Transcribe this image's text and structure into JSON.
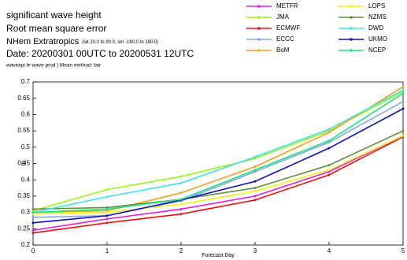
{
  "chart_data": {
    "type": "line",
    "title": "significant wave height",
    "subtitle": "Root mean square error",
    "region": "NHem Extratropics",
    "region_detail": "(lat  20.0 to 90.0, lon -180.0 to  180.0)",
    "date": "Date: 20200301 00UTC to 20200531 12UTC",
    "note": "waveapi le wave prod | Mean method: fair",
    "x_label": "Forecast Day",
    "y_label": "m",
    "x": [
      0,
      1,
      2,
      3,
      4,
      5
    ],
    "xlim": [
      0,
      5
    ],
    "xticks": [
      0,
      1,
      2,
      3,
      4,
      5
    ],
    "ylim": [
      0.2,
      0.7
    ],
    "yticks": [
      0.2,
      0.25,
      0.3,
      0.35,
      0.4,
      0.45,
      0.5,
      0.55,
      0.6,
      0.65,
      0.7
    ],
    "grid": false,
    "series": [
      {
        "name": "METFR",
        "color": "#e020e0",
        "values": [
          0.245,
          0.28,
          0.31,
          0.35,
          0.425,
          0.535
        ]
      },
      {
        "name": "JMA",
        "color": "#a0f020",
        "values": [
          0.305,
          0.37,
          0.41,
          0.465,
          0.55,
          0.67
        ]
      },
      {
        "name": "ECMWF",
        "color": "#e81010",
        "values": [
          0.237,
          0.268,
          0.295,
          0.338,
          0.415,
          0.532
        ]
      },
      {
        "name": "ECCC",
        "color": "#80a8f0",
        "values": [
          0.285,
          0.29,
          0.335,
          0.425,
          0.515,
          0.64
        ]
      },
      {
        "name": "BoM",
        "color": "#f0a020",
        "values": [
          0.3,
          0.305,
          0.36,
          0.44,
          0.545,
          0.685
        ]
      },
      {
        "name": "LOPS",
        "color": "#f0f020",
        "values": [
          0.295,
          0.3,
          0.325,
          0.365,
          0.43,
          0.535
        ]
      },
      {
        "name": "NZMS",
        "color": "#609040",
        "values": [
          0.31,
          0.315,
          0.34,
          0.375,
          0.445,
          0.55
        ]
      },
      {
        "name": "DWD",
        "color": "#40e0f0",
        "values": [
          0.3,
          0.348,
          0.39,
          0.47,
          0.555,
          0.675
        ]
      },
      {
        "name": "UKMO",
        "color": "#1010c0",
        "values": [
          0.268,
          0.29,
          0.338,
          0.395,
          0.497,
          0.618
        ]
      },
      {
        "name": "NCEP",
        "color": "#20e080",
        "values": [
          0.3,
          0.31,
          0.34,
          0.43,
          0.52,
          0.665
        ]
      }
    ]
  }
}
